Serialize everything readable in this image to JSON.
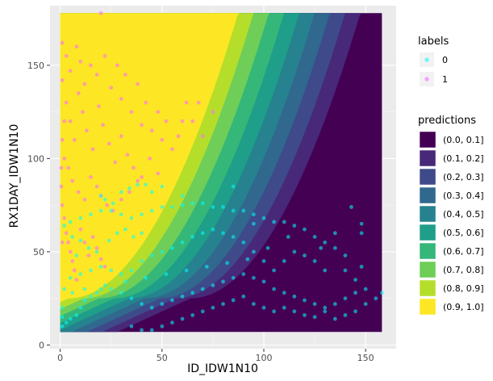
{
  "chart_data": {
    "type": "scatter",
    "xlabel": "ID_IDW1N10",
    "ylabel": "RX1DAY_IDW1N10",
    "xlim": [
      -5,
      165
    ],
    "ylim": [
      -2,
      182
    ],
    "x_ticks": [
      0,
      50,
      100,
      150
    ],
    "y_ticks": [
      0,
      50,
      100,
      150
    ],
    "grid": true,
    "panel_background": "#ebebeb",
    "raster_extent": {
      "x": [
        0,
        158
      ],
      "y": [
        7,
        178
      ]
    },
    "legend_position": "right",
    "legends": {
      "labels": {
        "title": "labels",
        "entries": [
          {
            "label": "0",
            "color": "#00ffff"
          },
          {
            "label": "1",
            "color": "#ff66ff"
          }
        ]
      },
      "predictions": {
        "title": "predictions",
        "entries": [
          {
            "label": "(0.0, 0.1]",
            "color": "#440154"
          },
          {
            "label": "(0.1, 0.2]",
            "color": "#482878"
          },
          {
            "label": "(0.2, 0.3]",
            "color": "#3e4a89"
          },
          {
            "label": "(0.3, 0.4]",
            "color": "#31688e"
          },
          {
            "label": "(0.4, 0.5]",
            "color": "#26828e"
          },
          {
            "label": "(0.5, 0.6]",
            "color": "#1f9e89"
          },
          {
            "label": "(0.6, 0.7]",
            "color": "#35b779"
          },
          {
            "label": "(0.7, 0.8]",
            "color": "#6ece58"
          },
          {
            "label": "(0.8, 0.9]",
            "color": "#b5de2b"
          },
          {
            "label": "(0.9, 1.0]",
            "color": "#fde725"
          }
        ]
      }
    },
    "series": [
      {
        "name": "1",
        "color": "#ff66ff",
        "points": [
          [
            20,
            178
          ],
          [
            1,
            162
          ],
          [
            3,
            155
          ],
          [
            5,
            147
          ],
          [
            8,
            160
          ],
          [
            10,
            152
          ],
          [
            12,
            140
          ],
          [
            15,
            150
          ],
          [
            18,
            145
          ],
          [
            22,
            155
          ],
          [
            25,
            138
          ],
          [
            28,
            150
          ],
          [
            30,
            132
          ],
          [
            32,
            145
          ],
          [
            35,
            125
          ],
          [
            38,
            140
          ],
          [
            40,
            118
          ],
          [
            42,
            130
          ],
          [
            45,
            115
          ],
          [
            48,
            125
          ],
          [
            50,
            110
          ],
          [
            52,
            120
          ],
          [
            55,
            105
          ],
          [
            58,
            112
          ],
          [
            60,
            120
          ],
          [
            62,
            130
          ],
          [
            65,
            120
          ],
          [
            68,
            130
          ],
          [
            70,
            112
          ],
          [
            75,
            125
          ],
          [
            3,
            130
          ],
          [
            5,
            120
          ],
          [
            7,
            110
          ],
          [
            9,
            135
          ],
          [
            11,
            125
          ],
          [
            13,
            115
          ],
          [
            16,
            105
          ],
          [
            19,
            128
          ],
          [
            21,
            118
          ],
          [
            24,
            108
          ],
          [
            27,
            98
          ],
          [
            30,
            112
          ],
          [
            33,
            102
          ],
          [
            36,
            95
          ],
          [
            40,
            90
          ],
          [
            44,
            100
          ],
          [
            48,
            92
          ],
          [
            2,
            100
          ],
          [
            4,
            95
          ],
          [
            6,
            88
          ],
          [
            9,
            82
          ],
          [
            12,
            78
          ],
          [
            15,
            90
          ],
          [
            18,
            85
          ],
          [
            20,
            80
          ],
          [
            23,
            75
          ],
          [
            26,
            72
          ],
          [
            30,
            78
          ],
          [
            34,
            82
          ],
          [
            38,
            88
          ],
          [
            1,
            75
          ],
          [
            2,
            68
          ],
          [
            3,
            60
          ],
          [
            4,
            55
          ],
          [
            5,
            50
          ],
          [
            6,
            45
          ],
          [
            7,
            40
          ],
          [
            8,
            35
          ],
          [
            10,
            62
          ],
          [
            12,
            55
          ],
          [
            14,
            48
          ],
          [
            16,
            58
          ],
          [
            18,
            52
          ],
          [
            20,
            46
          ],
          [
            22,
            42
          ],
          [
            1,
            142
          ],
          [
            2,
            120
          ],
          [
            1,
            110
          ],
          [
            0.5,
            95
          ],
          [
            0.5,
            85
          ],
          [
            1,
            55
          ]
        ]
      },
      {
        "name": "0",
        "color": "#00ffff",
        "points": [
          [
            143,
            74
          ],
          [
            158,
            28
          ],
          [
            155,
            25
          ],
          [
            150,
            30
          ],
          [
            145,
            35
          ],
          [
            140,
            40
          ],
          [
            140,
            48
          ],
          [
            135,
            52
          ],
          [
            130,
            55
          ],
          [
            125,
            58
          ],
          [
            120,
            62
          ],
          [
            115,
            64
          ],
          [
            110,
            66
          ],
          [
            105,
            66
          ],
          [
            100,
            68
          ],
          [
            95,
            70
          ],
          [
            90,
            72
          ],
          [
            85,
            72
          ],
          [
            80,
            74
          ],
          [
            75,
            74
          ],
          [
            70,
            76
          ],
          [
            65,
            76
          ],
          [
            60,
            75
          ],
          [
            55,
            74
          ],
          [
            50,
            74
          ],
          [
            45,
            72
          ],
          [
            40,
            70
          ],
          [
            35,
            68
          ],
          [
            30,
            70
          ],
          [
            25,
            72
          ],
          [
            20,
            72
          ],
          [
            15,
            70
          ],
          [
            10,
            68
          ],
          [
            5,
            66
          ],
          [
            2,
            64
          ],
          [
            20,
            80
          ],
          [
            22,
            78
          ],
          [
            26,
            76
          ],
          [
            30,
            82
          ],
          [
            34,
            84
          ],
          [
            38,
            86
          ],
          [
            42,
            86
          ],
          [
            45,
            82
          ],
          [
            50,
            85
          ],
          [
            130,
            40
          ],
          [
            125,
            45
          ],
          [
            120,
            48
          ],
          [
            115,
            50
          ],
          [
            110,
            45
          ],
          [
            105,
            40
          ],
          [
            100,
            45
          ],
          [
            95,
            50
          ],
          [
            90,
            55
          ],
          [
            85,
            58
          ],
          [
            80,
            60
          ],
          [
            75,
            62
          ],
          [
            70,
            60
          ],
          [
            65,
            58
          ],
          [
            60,
            55
          ],
          [
            55,
            52
          ],
          [
            50,
            50
          ],
          [
            45,
            48
          ],
          [
            40,
            45
          ],
          [
            35,
            40
          ],
          [
            30,
            38
          ],
          [
            25,
            40
          ],
          [
            20,
            42
          ],
          [
            15,
            40
          ],
          [
            10,
            38
          ],
          [
            5,
            36
          ],
          [
            2,
            30
          ],
          [
            1,
            20
          ],
          [
            1,
            15
          ],
          [
            1,
            10
          ],
          [
            3,
            12
          ],
          [
            5,
            14
          ],
          [
            8,
            16
          ],
          [
            10,
            20
          ],
          [
            12,
            24
          ],
          [
            15,
            26
          ],
          [
            18,
            28
          ],
          [
            20,
            30
          ],
          [
            25,
            30
          ],
          [
            30,
            28
          ],
          [
            35,
            25
          ],
          [
            40,
            22
          ],
          [
            45,
            20
          ],
          [
            50,
            22
          ],
          [
            55,
            24
          ],
          [
            60,
            26
          ],
          [
            65,
            28
          ],
          [
            70,
            30
          ],
          [
            75,
            32
          ],
          [
            80,
            34
          ],
          [
            85,
            36
          ],
          [
            90,
            38
          ],
          [
            95,
            36
          ],
          [
            100,
            34
          ],
          [
            105,
            30
          ],
          [
            110,
            28
          ],
          [
            115,
            26
          ],
          [
            120,
            24
          ],
          [
            125,
            22
          ],
          [
            130,
            20
          ],
          [
            135,
            22
          ],
          [
            140,
            25
          ],
          [
            145,
            28
          ],
          [
            150,
            22
          ],
          [
            35,
            10
          ],
          [
            40,
            8
          ],
          [
            45,
            8
          ],
          [
            50,
            10
          ],
          [
            55,
            12
          ],
          [
            60,
            14
          ],
          [
            65,
            16
          ],
          [
            70,
            18
          ],
          [
            75,
            20
          ],
          [
            80,
            22
          ],
          [
            85,
            24
          ],
          [
            90,
            26
          ],
          [
            95,
            22
          ],
          [
            100,
            20
          ],
          [
            105,
            18
          ],
          [
            110,
            20
          ],
          [
            115,
            18
          ],
          [
            120,
            16
          ],
          [
            125,
            15
          ],
          [
            130,
            18
          ],
          [
            135,
            14
          ],
          [
            140,
            16
          ],
          [
            145,
            18
          ],
          [
            148,
            42
          ],
          [
            148,
            60
          ],
          [
            148,
            65
          ],
          [
            60,
            80
          ],
          [
            85,
            85
          ],
          [
            95,
            65
          ],
          [
            135,
            60
          ],
          [
            128,
            52
          ],
          [
            112,
            58
          ],
          [
            102,
            52
          ],
          [
            92,
            46
          ],
          [
            82,
            44
          ],
          [
            72,
            42
          ],
          [
            62,
            40
          ],
          [
            52,
            38
          ],
          [
            42,
            36
          ],
          [
            32,
            34
          ],
          [
            22,
            32
          ],
          [
            12,
            30
          ],
          [
            6,
            28
          ],
          [
            8,
            48
          ],
          [
            6,
            58
          ],
          [
            10,
            56
          ],
          [
            14,
            52
          ],
          [
            18,
            50
          ],
          [
            24,
            56
          ],
          [
            28,
            60
          ],
          [
            32,
            62
          ],
          [
            36,
            58
          ],
          [
            40,
            60
          ]
        ]
      }
    ]
  }
}
